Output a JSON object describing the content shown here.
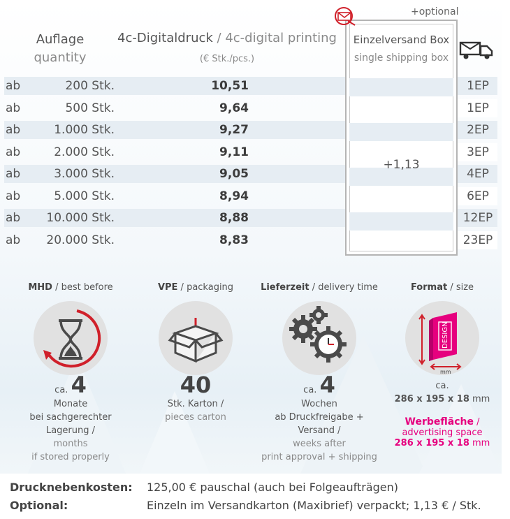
{
  "header": {
    "quantity_de": "Auflage",
    "quantity_en": "quantity",
    "print_de": "4c-Digitaldruck",
    "print_sep": " / ",
    "print_en": "4c-digital printing",
    "unit": "(€ Stk./pcs.)",
    "optional": "+optional",
    "ship_de": "Einzelversand Box",
    "ship_en": "single shipping box",
    "ship_price": "+1,13"
  },
  "rows": [
    {
      "ab": "ab",
      "qty": "200 Stk.",
      "price": "10,51",
      "ep": "1EP"
    },
    {
      "ab": "ab",
      "qty": "500 Stk.",
      "price": "9,64",
      "ep": "1EP"
    },
    {
      "ab": "ab",
      "qty": "1.000 Stk.",
      "price": "9,27",
      "ep": "2EP"
    },
    {
      "ab": "ab",
      "qty": "2.000 Stk.",
      "price": "9,11",
      "ep": "3EP"
    },
    {
      "ab": "ab",
      "qty": "3.000 Stk.",
      "price": "9,05",
      "ep": "4EP"
    },
    {
      "ab": "ab",
      "qty": "5.000 Stk.",
      "price": "8,94",
      "ep": "6EP"
    },
    {
      "ab": "ab",
      "qty": "10.000 Stk.",
      "price": "8,88",
      "ep": "12EP"
    },
    {
      "ab": "ab",
      "qty": "20.000 Stk.",
      "price": "8,83",
      "ep": "23EP"
    }
  ],
  "info": {
    "mhd": {
      "title_de": "MHD",
      "title_en": " / best before",
      "prefix": "ca.",
      "value": "4",
      "line1": "Monate",
      "line2": "bei sachgerechter Lagerung /",
      "line3": "months",
      "line4": "if stored properly"
    },
    "vpe": {
      "title_de": "VPE",
      "title_en": " / packaging",
      "value": "40",
      "line1": "Stk. Karton /",
      "line2": "pieces carton"
    },
    "delivery": {
      "title_de": "Lieferzeit",
      "title_en": " / delivery time",
      "prefix": "ca.",
      "value": "4",
      "line1": "Wochen",
      "line2": "ab Druckfreigabe + Versand /",
      "line3": "weeks after",
      "line4": "print approval + shipping"
    },
    "format": {
      "title_de": "Format",
      "title_en": " / size",
      "prefix": "ca.",
      "dims": "286 x 195 x 18",
      "unit": " mm",
      "ad_de": "Werbefläche",
      "ad_sep": " /",
      "ad_en": "advertising space",
      "ad_dims": "286 x 195 x 18",
      "ad_unit": " mm",
      "icon_text": "DESIGN",
      "icon_unit": "mm"
    }
  },
  "footer": {
    "costs_label": "Drucknebenkosten:",
    "costs_value": "125,00 € pauschal (auch bei Folgeaufträgen)",
    "optional_label": "Optional:",
    "optional_value": "Einzeln im Versandkarton (Maxibrief) verpackt; 1,13 € / Stk."
  },
  "colors": {
    "accent": "#e6007e",
    "alert_red": "#d0202a",
    "row_band": "#e6edf3",
    "icon_grey": "#4a4a4a"
  },
  "icons": [
    "mail-icon",
    "truck-icon",
    "hourglass-icon",
    "box-icon",
    "gears-clock-icon",
    "format-box-icon"
  ]
}
